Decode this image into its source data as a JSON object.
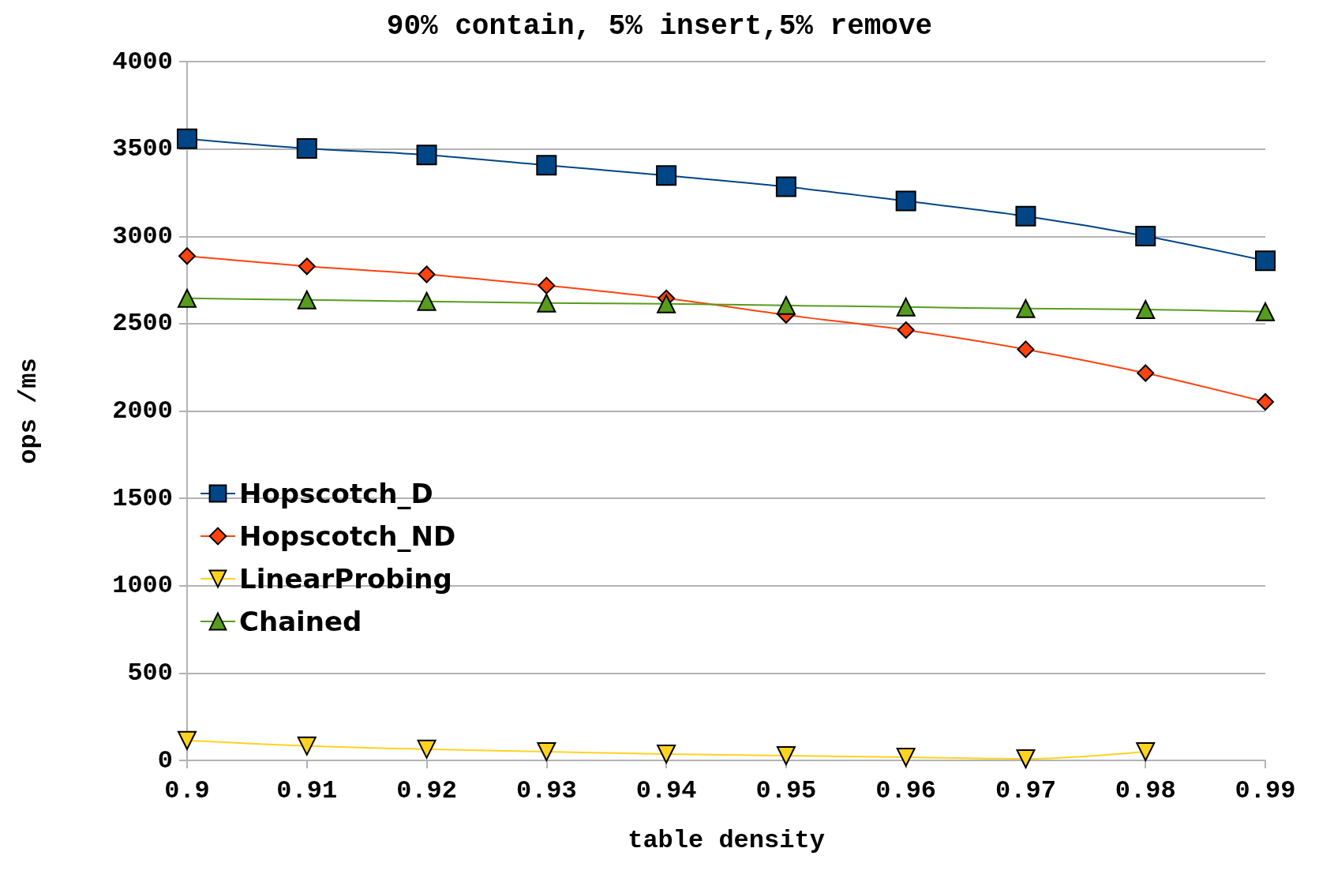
{
  "chart_data": {
    "type": "line",
    "title": "90% contain, 5% insert,5% remove",
    "xlabel": "table density",
    "ylabel": "ops /ms",
    "x": [
      0.9,
      0.91,
      0.92,
      0.93,
      0.94,
      0.95,
      0.96,
      0.97,
      0.98,
      0.99
    ],
    "xlim": [
      0.9,
      0.99
    ],
    "xticks": [
      0.9,
      0.91,
      0.92,
      0.93,
      0.94,
      0.95,
      0.96,
      0.97,
      0.98,
      0.99
    ],
    "ylim": [
      0,
      4000
    ],
    "yticks": [
      0,
      500,
      1000,
      1500,
      2000,
      2500,
      3000,
      3500,
      4000
    ],
    "grid": "y",
    "legend": "left",
    "line_style": "solid",
    "series": [
      {
        "name": "Hopscotch_D",
        "color": "#004586",
        "marker": "square",
        "values": [
          3558,
          3503,
          3466,
          3407,
          3348,
          3284,
          3202,
          3115,
          3001,
          2860
        ]
      },
      {
        "name": "Hopscotch_ND",
        "color": "#ff420e",
        "marker": "diamond",
        "values": [
          2887,
          2828,
          2782,
          2718,
          2645,
          2550,
          2463,
          2353,
          2217,
          2052
        ]
      },
      {
        "name": "LinearProbing",
        "color": "#ffd320",
        "marker": "triangle-down",
        "values": [
          114,
          82,
          64,
          50,
          36,
          27,
          18,
          9,
          50,
          null
        ]
      },
      {
        "name": "Chained",
        "color": "#579d1c",
        "marker": "triangle",
        "values": [
          2645,
          2636,
          2627,
          2618,
          2613,
          2604,
          2595,
          2586,
          2581,
          2568
        ]
      }
    ]
  }
}
